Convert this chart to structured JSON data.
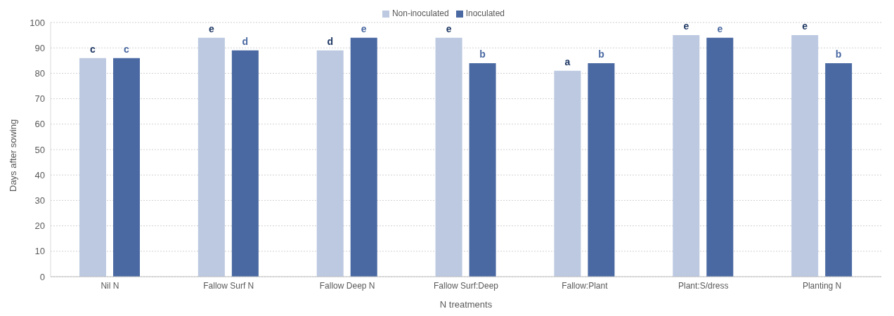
{
  "chart_data": {
    "type": "bar",
    "xlabel": "N treatments",
    "ylabel": "Days after sowing",
    "categories": [
      "Nil N",
      "Fallow Surf N",
      "Fallow Deep N",
      "Fallow Surf:Deep",
      "Fallow:Plant",
      "Plant:S/dress",
      "Planting N"
    ],
    "series": [
      {
        "name": "Non-inoculated",
        "color": "#bcc9e1",
        "values": [
          86,
          94,
          89,
          94,
          81,
          95,
          95
        ],
        "value_labels": [
          "c",
          "e",
          "d",
          "e",
          "a",
          "e",
          "e"
        ]
      },
      {
        "name": "Inoculated",
        "color": "#4a69a2",
        "values": [
          86,
          89,
          94,
          84,
          84,
          94,
          84
        ],
        "value_labels": [
          "c",
          "d",
          "e",
          "b",
          "b",
          "e",
          "b"
        ]
      }
    ],
    "ylim": [
      0,
      100
    ],
    "yticks": [
      0,
      10,
      20,
      30,
      40,
      50,
      60,
      70,
      80,
      90,
      100
    ],
    "grid": "y",
    "legend": "top"
  }
}
